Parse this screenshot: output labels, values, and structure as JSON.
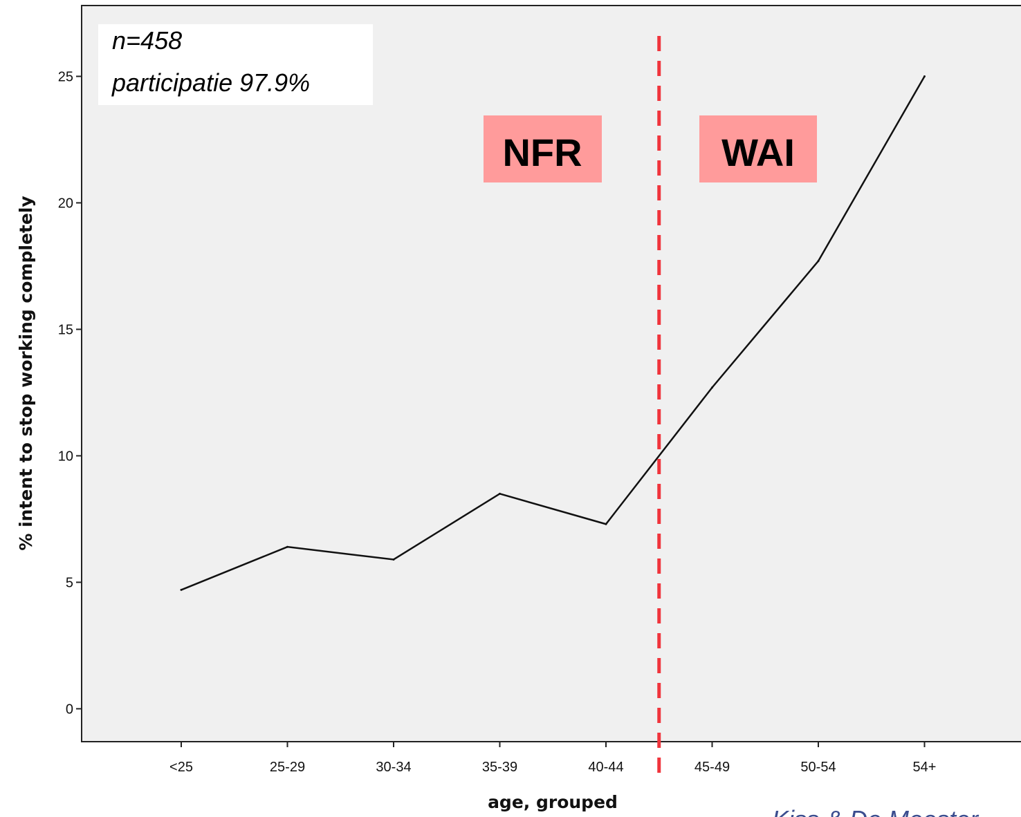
{
  "chart_data": {
    "type": "line",
    "xlabel": "age, grouped",
    "ylabel": "% intent to stop working completely",
    "categories": [
      "<25",
      "25-29",
      "30-34",
      "35-39",
      "40-44",
      "45-49",
      "50-54",
      "54+"
    ],
    "values": [
      4.7,
      6.4,
      5.9,
      8.5,
      7.3,
      12.7,
      17.7,
      25.0
    ],
    "ylim": [
      -1.3,
      27.8
    ],
    "yticks": [
      "0",
      "5",
      "10",
      "15",
      "20",
      "25"
    ],
    "grid": false,
    "line_color": "#111111",
    "plot_background": "#f0f0f0",
    "cutoff_after_category": "40-44",
    "cutoff_color": "#f0343c"
  },
  "annotations": {
    "sample_size": "n=458",
    "participation": "participatie 97.9%",
    "left_region_label": "NFR",
    "right_region_label": "WAI",
    "region_label_background": "#ff9b9b",
    "credit": "Kiss & De Meester"
  }
}
